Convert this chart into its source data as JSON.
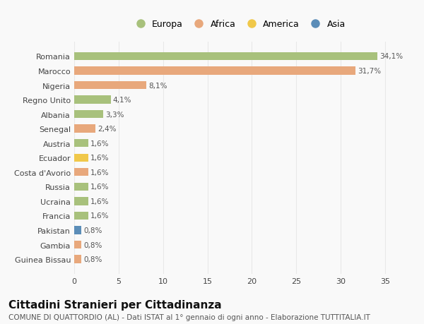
{
  "countries": [
    "Guinea Bissau",
    "Gambia",
    "Pakistan",
    "Francia",
    "Ucraina",
    "Russia",
    "Costa d'Avorio",
    "Ecuador",
    "Austria",
    "Senegal",
    "Albania",
    "Regno Unito",
    "Nigeria",
    "Marocco",
    "Romania"
  ],
  "values": [
    0.8,
    0.8,
    0.8,
    1.6,
    1.6,
    1.6,
    1.6,
    1.6,
    1.6,
    2.4,
    3.3,
    4.1,
    8.1,
    31.7,
    34.1
  ],
  "labels": [
    "0,8%",
    "0,8%",
    "0,8%",
    "1,6%",
    "1,6%",
    "1,6%",
    "1,6%",
    "1,6%",
    "1,6%",
    "2,4%",
    "3,3%",
    "4,1%",
    "8,1%",
    "31,7%",
    "34,1%"
  ],
  "continents": [
    "Africa",
    "Africa",
    "Asia",
    "Europa",
    "Europa",
    "Europa",
    "Africa",
    "America",
    "Europa",
    "Africa",
    "Europa",
    "Europa",
    "Africa",
    "Africa",
    "Europa"
  ],
  "colors": {
    "Europa": "#a8c17c",
    "Africa": "#e8a87c",
    "America": "#f0c84a",
    "Asia": "#5b8db8"
  },
  "legend_order": [
    "Europa",
    "Africa",
    "America",
    "Asia"
  ],
  "title": "Cittadini Stranieri per Cittadinanza",
  "subtitle": "COMUNE DI QUATTORDIO (AL) - Dati ISTAT al 1° gennaio di ogni anno - Elaborazione TUTTITALIA.IT",
  "xlim": [
    0,
    37
  ],
  "xticks": [
    0,
    5,
    10,
    15,
    20,
    25,
    30,
    35
  ],
  "background_color": "#f9f9f9",
  "grid_color": "#e8e8e8",
  "bar_height": 0.55,
  "title_fontsize": 11,
  "subtitle_fontsize": 7.5,
  "label_fontsize": 7.5,
  "tick_fontsize": 8,
  "legend_fontsize": 9
}
